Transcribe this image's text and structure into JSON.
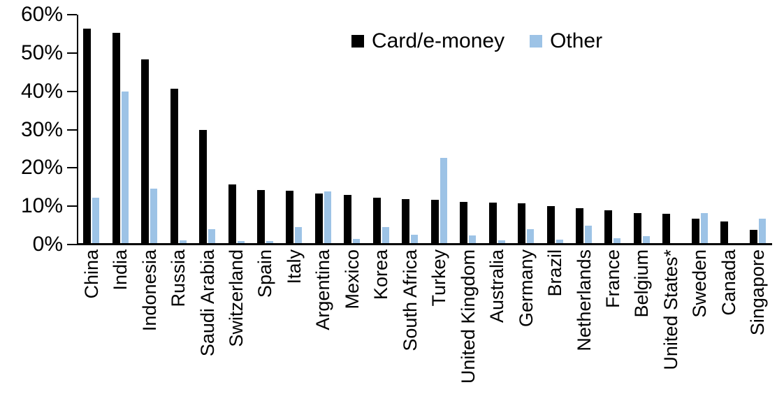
{
  "chart_data": {
    "type": "bar",
    "title": "",
    "xlabel": "",
    "ylabel": "",
    "ylim": [
      0,
      60
    ],
    "ytick_labels": [
      "0%",
      "10%",
      "20%",
      "30%",
      "40%",
      "50%",
      "60%"
    ],
    "grid": false,
    "legend_position": "top-center",
    "categories": [
      "China",
      "India",
      "Indonesia",
      "Russia",
      "Saudi Arabia",
      "Switzerland",
      "Spain",
      "Italy",
      "Argentina",
      "Mexico",
      "Korea",
      "South Africa",
      "Turkey",
      "United Kingdom",
      "Australia",
      "Germany",
      "Brazil",
      "Netherlands",
      "France",
      "Belgium",
      "United States*",
      "Sweden",
      "Canada",
      "Singapore"
    ],
    "series": [
      {
        "name": "Card/e-money",
        "color": "#000000",
        "values": [
          56.3,
          55.2,
          48.4,
          40.6,
          29.9,
          15.7,
          14.2,
          14.1,
          13.4,
          12.9,
          12.3,
          11.8,
          11.7,
          11.1,
          10.9,
          10.7,
          10.0,
          9.4,
          8.9,
          8.3,
          8.0,
          6.7,
          6.0,
          3.9
        ]
      },
      {
        "name": "Other",
        "color": "#9DC3E6",
        "values": [
          12.3,
          39.9,
          14.6,
          1.1,
          4.0,
          0.9,
          1.0,
          4.6,
          13.8,
          1.4,
          4.6,
          2.6,
          22.7,
          2.4,
          1.1,
          4.1,
          1.3,
          5.0,
          1.7,
          2.2,
          0.4,
          8.2,
          0.0,
          6.8
        ]
      }
    ]
  },
  "colors": {
    "card": "#000000",
    "other": "#9DC3E6",
    "axis": "#000000",
    "background": "#FFFFFF"
  }
}
